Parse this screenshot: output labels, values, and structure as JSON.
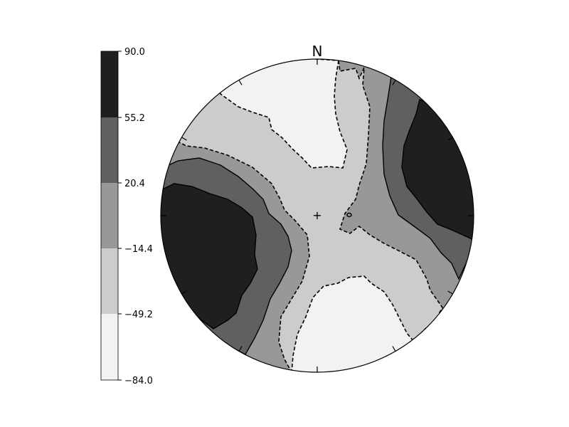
{
  "chart_data": {
    "type": "heatmap",
    "title": "",
    "xlabel": "",
    "ylabel": "",
    "projection": "stereonet",
    "north_label": "N",
    "colorbar": {
      "ticks": [
        "90.0",
        "55.2",
        "20.4",
        "−14.4",
        "−49.2",
        "−84.0"
      ],
      "levels": [
        {
          "range": [
            55.2,
            90.0
          ],
          "color": "#1f1f1f"
        },
        {
          "range": [
            20.4,
            55.2
          ],
          "color": "#606060"
        },
        {
          "range": [
            -14.4,
            20.4
          ],
          "color": "#989898"
        },
        {
          "range": [
            -49.2,
            -14.4
          ],
          "color": "#cccccc"
        },
        {
          "range": [
            -84.0,
            -49.2
          ],
          "color": "#f2f2f2"
        }
      ]
    },
    "contour_lines": [
      {
        "value": 55.2,
        "style": "solid"
      },
      {
        "value": 20.4,
        "style": "solid"
      },
      {
        "value": -14.4,
        "style": "dashed"
      },
      {
        "value": -49.2,
        "style": "dashed"
      }
    ],
    "regions": [
      {
        "position": "east",
        "level": 55.2
      },
      {
        "position": "west",
        "level": 55.2
      },
      {
        "position": "north",
        "level": -84.0
      },
      {
        "position": "south",
        "level": -84.0
      }
    ],
    "center_marker": "+"
  }
}
